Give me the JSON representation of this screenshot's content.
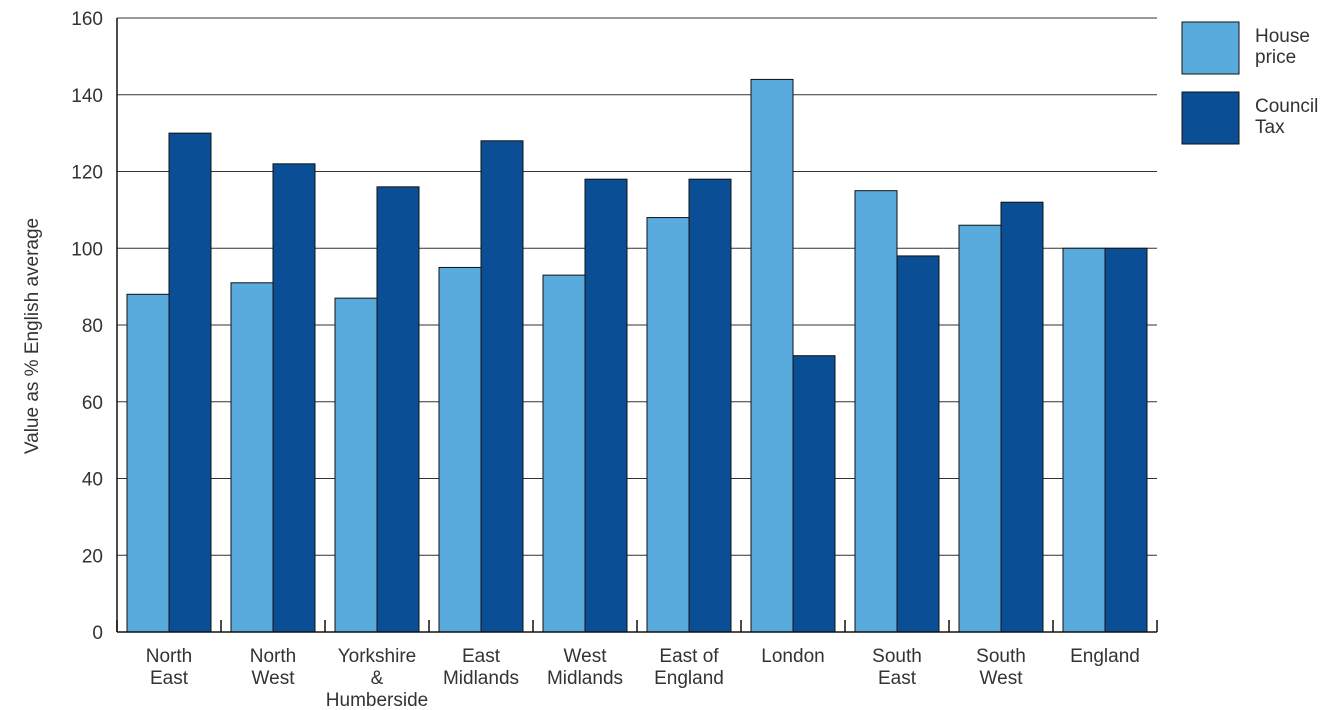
{
  "chart_data": {
    "type": "bar",
    "categories": [
      [
        "North",
        "East"
      ],
      [
        "North",
        "West"
      ],
      [
        "Yorkshire",
        "&",
        "Humberside"
      ],
      [
        "East",
        "Midlands"
      ],
      [
        "West",
        "Midlands"
      ],
      [
        "East of",
        "England"
      ],
      [
        "London"
      ],
      [
        "South",
        "East"
      ],
      [
        "South",
        "West"
      ],
      [
        "England"
      ]
    ],
    "series": [
      {
        "name": "House price",
        "legend_lines": [
          "House",
          "price"
        ],
        "color": "#5aabdd",
        "values": [
          88,
          91,
          87,
          95,
          93,
          108,
          144,
          115,
          106,
          100
        ]
      },
      {
        "name": "Council Tax",
        "legend_lines": [
          "Council",
          "Tax"
        ],
        "color": "#0a4f96",
        "values": [
          130,
          122,
          116,
          128,
          118,
          118,
          72,
          98,
          112,
          100
        ]
      }
    ],
    "ylabel": "Value as % English average",
    "ylim": [
      0,
      160
    ],
    "yticks": [
      0,
      20,
      40,
      60,
      80,
      100,
      120,
      140,
      160
    ],
    "grid": true,
    "legend_position": "right-top"
  }
}
